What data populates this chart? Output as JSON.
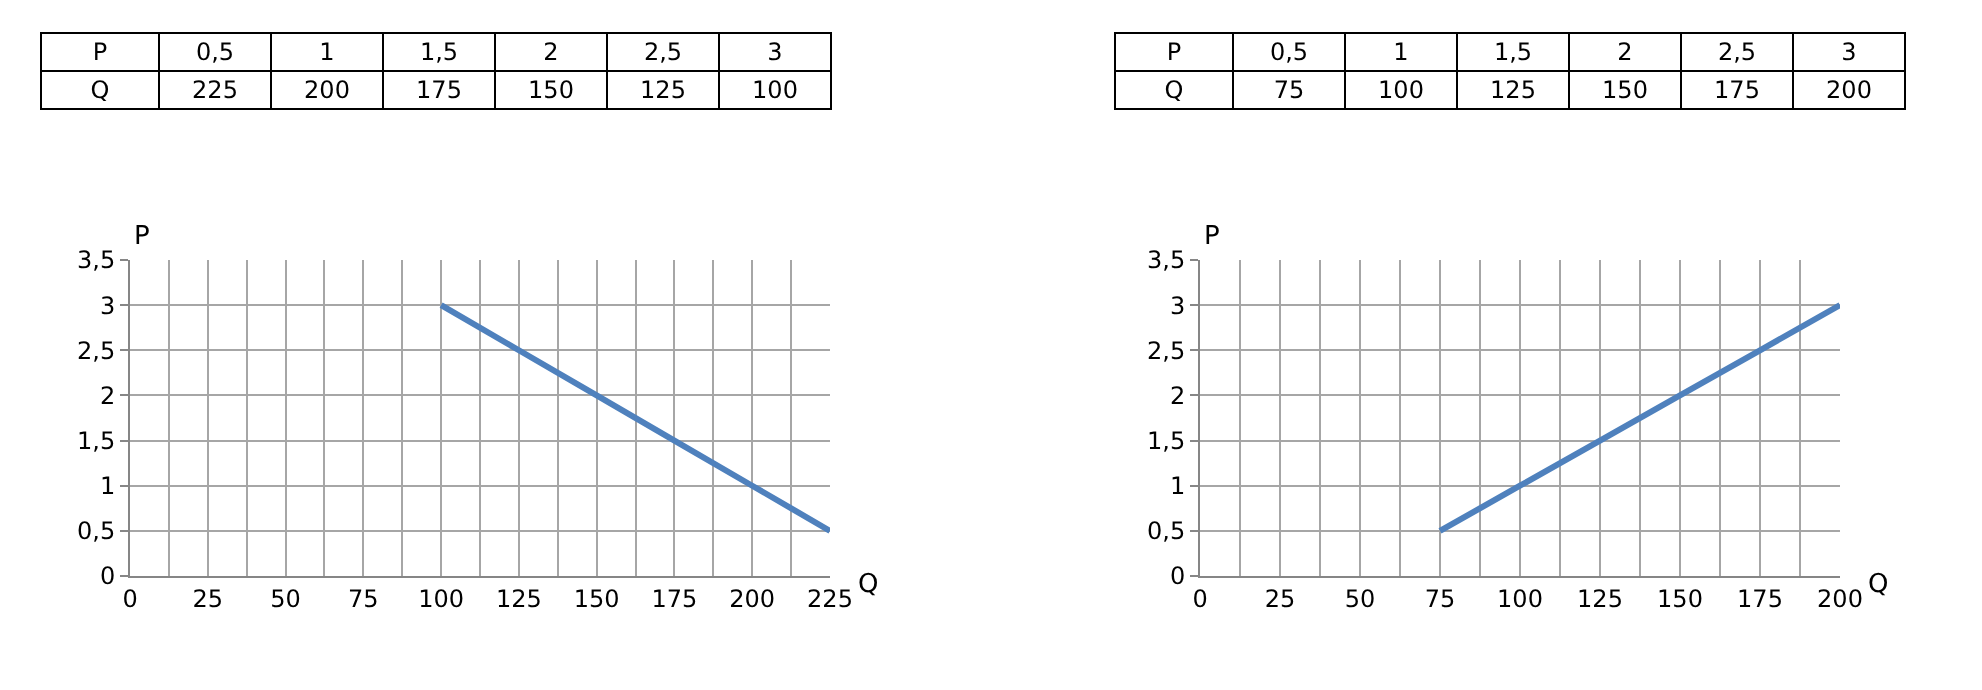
{
  "chart_data": [
    {
      "type": "line",
      "xlabel": "Q",
      "ylabel": "P",
      "x": [
        225,
        200,
        175,
        150,
        125,
        100
      ],
      "series": [
        {
          "color": "#4f81bd",
          "values": [
            0.5,
            1,
            1.5,
            2,
            2.5,
            3
          ]
        }
      ],
      "xlim": [
        0,
        225
      ],
      "ylim": [
        0,
        3.5
      ],
      "xticks": [
        0,
        {
          "value": 12.5,
          "label": null
        },
        25,
        {
          "value": 37.5,
          "label": null
        },
        50,
        {
          "value": 62.5,
          "label": null
        },
        75,
        {
          "value": 87.5,
          "label": null
        },
        100,
        {
          "value": 112.5,
          "label": null
        },
        125,
        {
          "value": 137.5,
          "label": null
        },
        150,
        {
          "value": 162.5,
          "label": null
        },
        175,
        {
          "value": 187.5,
          "label": null
        },
        200,
        {
          "value": 212.5,
          "label": null
        },
        225
      ],
      "yticks": [
        0,
        {
          "value": 0.5,
          "label": "0,5"
        },
        1,
        {
          "value": 1.5,
          "label": "1,5"
        },
        2,
        {
          "value": 2.5,
          "label": "2,5"
        },
        3,
        {
          "value": 3.5,
          "label": "3,5"
        }
      ],
      "grid": true,
      "line_style": "solid",
      "annotations": [
        "P",
        "0,5",
        "1",
        "1,5",
        "2",
        "2,5",
        "3",
        "Q",
        "225",
        "200",
        "175",
        "150",
        "125",
        "100"
      ]
    },
    {
      "type": "line",
      "xlabel": "Q",
      "ylabel": "P",
      "x": [
        75,
        100,
        125,
        150,
        175,
        200
      ],
      "series": [
        {
          "color": "#4f81bd",
          "values": [
            0.5,
            1,
            1.5,
            2,
            2.5,
            3
          ]
        }
      ],
      "xlim": [
        0,
        200
      ],
      "ylim": [
        0,
        3.5
      ],
      "xticks": [
        0,
        {
          "value": 12.5,
          "label": null
        },
        25,
        {
          "value": 37.5,
          "label": null
        },
        50,
        {
          "value": 62.5,
          "label": null
        },
        75,
        {
          "value": 87.5,
          "label": null
        },
        100,
        {
          "value": 112.5,
          "label": null
        },
        125,
        {
          "value": 137.5,
          "label": null
        },
        150,
        {
          "value": 162.5,
          "label": null
        },
        175,
        {
          "value": 187.5,
          "label": null
        },
        200
      ],
      "yticks": [
        0,
        {
          "value": 0.5,
          "label": "0,5"
        },
        1,
        {
          "value": 1.5,
          "label": "1,5"
        },
        2,
        {
          "value": 2.5,
          "label": "2,5"
        },
        3,
        {
          "value": 3.5,
          "label": "3,5"
        }
      ],
      "grid": true,
      "line_style": "solid",
      "annotations": [
        "P",
        "0,5",
        "1",
        "1,5",
        "2",
        "2,5",
        "3",
        "Q",
        "75",
        "100",
        "125",
        "150",
        "175",
        "200"
      ]
    }
  ]
}
